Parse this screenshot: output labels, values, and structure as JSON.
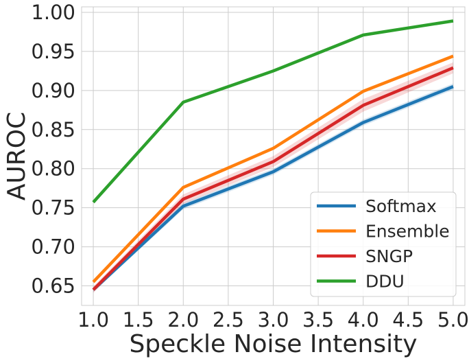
{
  "chart_data": {
    "type": "line",
    "title": "",
    "xlabel": "Speckle Noise Intensity",
    "ylabel": "AUROC",
    "x": [
      1.0,
      2.0,
      3.0,
      4.0,
      5.0
    ],
    "xticks": [
      "1.0",
      "1.5",
      "2.0",
      "2.5",
      "3.0",
      "3.5",
      "4.0",
      "4.5",
      "5.0"
    ],
    "yticks": [
      "0.65",
      "0.70",
      "0.75",
      "0.80",
      "0.85",
      "0.90",
      "0.95",
      "1.00"
    ],
    "xlim": [
      0.87,
      5.13
    ],
    "ylim": [
      0.625,
      1.007
    ],
    "grid": true,
    "legend_position": "lower-right",
    "series": [
      {
        "name": "Softmax",
        "color": "#1f77b4",
        "values": [
          0.645,
          0.752,
          0.796,
          0.859,
          0.905
        ],
        "band": [
          0.003,
          0.004,
          0.004,
          0.004,
          0.004
        ]
      },
      {
        "name": "Ensemble",
        "color": "#ff7f0e",
        "values": [
          0.655,
          0.776,
          0.826,
          0.899,
          0.944
        ],
        "band": [
          0.002,
          0.002,
          0.002,
          0.002,
          0.002
        ]
      },
      {
        "name": "SNGP",
        "color": "#d62728",
        "values": [
          0.645,
          0.761,
          0.809,
          0.881,
          0.929
        ],
        "band": [
          0.004,
          0.006,
          0.007,
          0.008,
          0.007
        ]
      },
      {
        "name": "DDU",
        "color": "#2ca02c",
        "values": [
          0.757,
          0.885,
          0.925,
          0.971,
          0.989
        ],
        "band": [
          0.001,
          0.001,
          0.001,
          0.001,
          0.001
        ]
      }
    ]
  }
}
